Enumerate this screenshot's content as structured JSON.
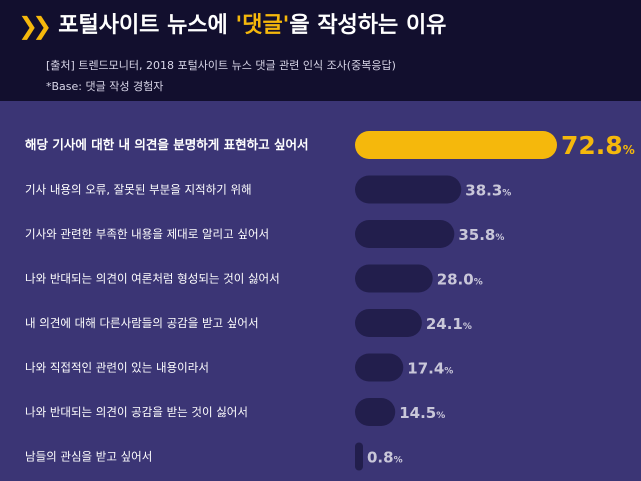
{
  "header": {
    "chevron": "❯❯",
    "title_pre": "포털사이트 뉴스에 ",
    "title_highlight": "'댓글'",
    "title_post": "을 작성하는 이유",
    "source": "[출처] 트렌드모니터, 2018 포털사이트 뉴스 댓글 관련 인식 조사(중복응답)",
    "base": "*Base: 댓글 작성 경험자"
  },
  "colors": {
    "background": "#3b3575",
    "header_bg": "#120f2e",
    "accent": "#f5b80c",
    "bar": "#221e4c",
    "value_text": "#c9c7d9"
  },
  "chart_data": {
    "type": "bar",
    "orientation": "horizontal",
    "unit": "%",
    "xlim": [
      0,
      72.8
    ],
    "categories": [
      "해당 기사에 대한 내 의견을 분명하게 표현하고 싶어서",
      "기사 내용의 오류, 잘못된 부분을 지적하기 위해",
      "기사와 관련한 부족한 내용을 제대로 알리고 싶어서",
      "나와 반대되는 의견이 여론처럼 형성되는 것이 싫어서",
      "내 의견에 대해 다른사람들의 공감을 받고 싶어서",
      "나와 직접적인 관련이 있는 내용이라서",
      "나와 반대되는 의견이 공감을 받는 것이 싫어서",
      "남들의 관심을 받고 싶어서"
    ],
    "values": [
      72.8,
      38.3,
      35.8,
      28.0,
      24.1,
      17.4,
      14.5,
      0.8
    ],
    "value_labels": [
      "72.8",
      "38.3",
      "35.8",
      "28.0",
      "24.1",
      "17.4",
      "14.5",
      "0.8"
    ],
    "highlight_index": 0
  }
}
